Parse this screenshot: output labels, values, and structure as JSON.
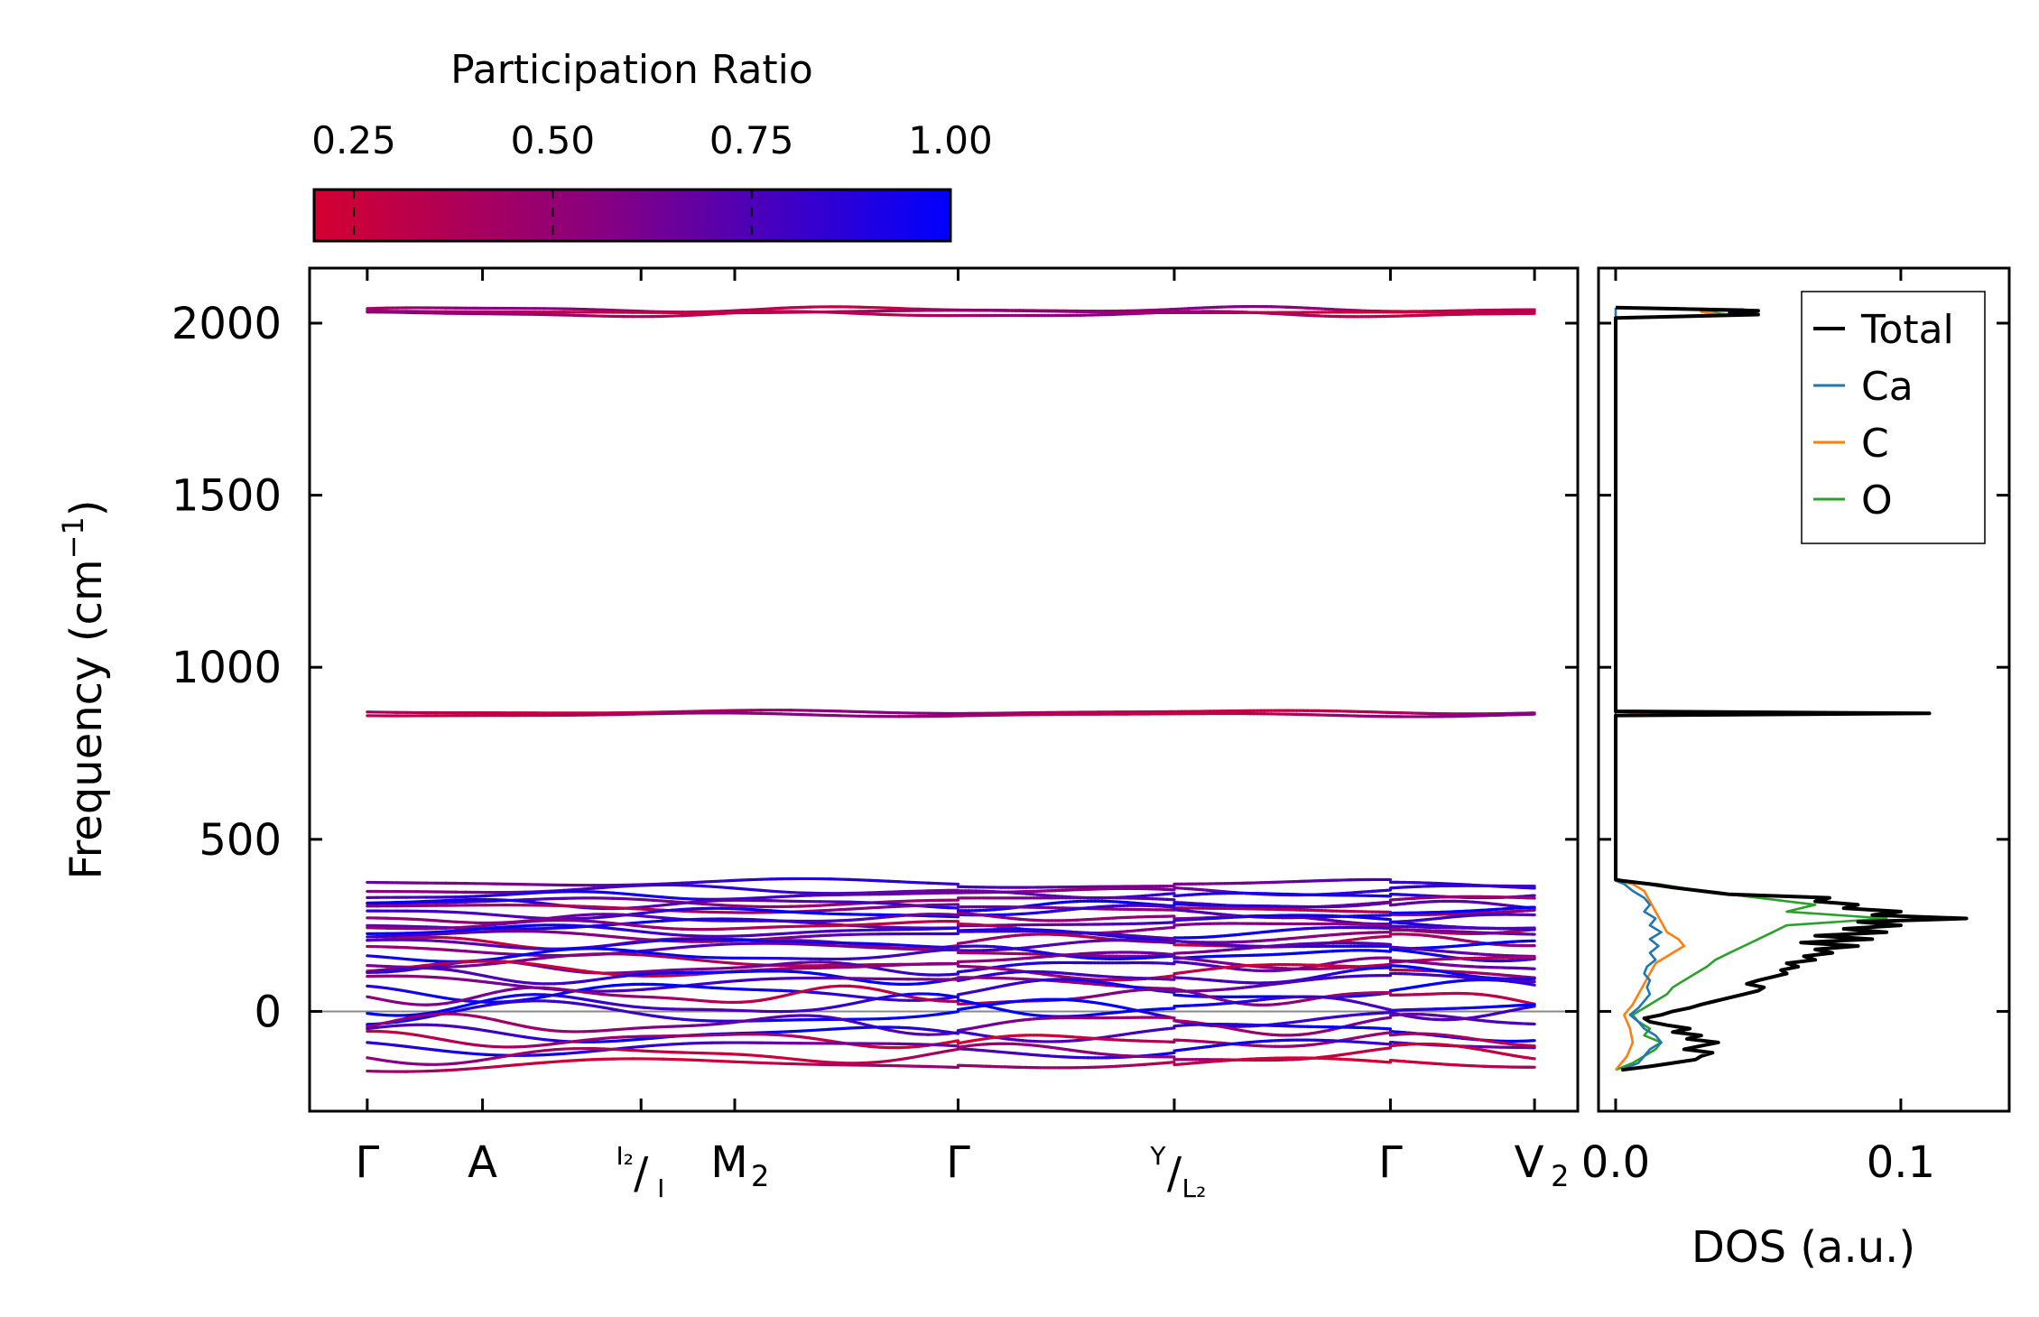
{
  "chart_data": {
    "type": "line",
    "title": "",
    "colorbar": {
      "label": "Participation Ratio",
      "range": [
        0.2,
        1.0
      ],
      "ticks": [
        0.25,
        0.5,
        0.75,
        1.0
      ],
      "tick_labels": [
        "0.25",
        "0.50",
        "0.75",
        "1.00"
      ],
      "color_low": "#d40030",
      "color_mid": "#880080",
      "color_high": "#0000ff"
    },
    "band_panel": {
      "ylabel_main": "Frequency (cm",
      "ylabel_sup": "−1",
      "ylabel_end": ")",
      "ylim": [
        -290,
        2160
      ],
      "yticks": [
        0,
        500,
        1000,
        1500,
        2000
      ],
      "ytick_labels": [
        "0",
        "500",
        "1000",
        "1500",
        "2000"
      ],
      "xlim": [
        -0.4,
        8.4
      ],
      "path_breaks": [
        4.1,
        5.6,
        7.1
      ],
      "kpoints": [
        {
          "x": 0.0,
          "base": "Γ",
          "sub": "",
          "top": "",
          "bottom": ""
        },
        {
          "x": 0.8,
          "base": "A",
          "sub": "",
          "top": "",
          "bottom": ""
        },
        {
          "x": 1.9,
          "base": "",
          "sub": "",
          "top": "I₂",
          "bottom": "I"
        },
        {
          "x": 2.55,
          "base": "M",
          "sub": "2",
          "top": "",
          "bottom": ""
        },
        {
          "x": 4.1,
          "base": "Γ",
          "sub": "",
          "top": "",
          "bottom": ""
        },
        {
          "x": 5.6,
          "base": "",
          "sub": "",
          "top": "Y",
          "bottom": "L₂"
        },
        {
          "x": 7.1,
          "base": "Γ",
          "sub": "",
          "top": "",
          "bottom": ""
        },
        {
          "x": 8.1,
          "base": "V",
          "sub": "2",
          "top": "",
          "bottom": ""
        }
      ],
      "high_bands": [
        {
          "base": 2040,
          "amp": 6,
          "k": 1.1,
          "pr": 0.42
        },
        {
          "base": 2026,
          "amp": 6,
          "k": 1.1,
          "pr": 0.42
        },
        {
          "base": 2033,
          "amp": 3,
          "k": 0.7,
          "pr": 0.4
        },
        {
          "base": 870,
          "amp": 4,
          "k": 0.9,
          "pr": 0.42
        },
        {
          "base": 862,
          "amp": 4,
          "k": 0.9,
          "pr": 0.42
        }
      ],
      "low_bands": [
        {
          "base": 370,
          "amp": 8,
          "k": 0.8,
          "pr": 0.75
        },
        {
          "base": 352,
          "amp": 10,
          "k": 1.0,
          "pr": 0.7
        },
        {
          "base": 338,
          "amp": 9,
          "k": 1.2,
          "pr": 0.8
        },
        {
          "base": 322,
          "amp": 10,
          "k": 0.9,
          "pr": 0.6
        },
        {
          "base": 308,
          "amp": 11,
          "k": 1.3,
          "pr": 0.85
        },
        {
          "base": 298,
          "amp": 10,
          "k": 0.7,
          "pr": 0.5
        },
        {
          "base": 285,
          "amp": 12,
          "k": 1.1,
          "pr": 0.9
        },
        {
          "base": 272,
          "amp": 10,
          "k": 1.4,
          "pr": 0.65
        },
        {
          "base": 258,
          "amp": 12,
          "k": 0.8,
          "pr": 0.8
        },
        {
          "base": 245,
          "amp": 11,
          "k": 1.2,
          "pr": 0.45
        },
        {
          "base": 232,
          "amp": 13,
          "k": 1.0,
          "pr": 0.9
        },
        {
          "base": 220,
          "amp": 12,
          "k": 0.9,
          "pr": 0.7
        },
        {
          "base": 205,
          "amp": 14,
          "k": 1.3,
          "pr": 0.4
        },
        {
          "base": 192,
          "amp": 12,
          "k": 1.1,
          "pr": 0.85
        },
        {
          "base": 178,
          "amp": 14,
          "k": 0.8,
          "pr": 0.6
        },
        {
          "base": 163,
          "amp": 15,
          "k": 1.2,
          "pr": 0.95
        },
        {
          "base": 148,
          "amp": 16,
          "k": 0.9,
          "pr": 0.5
        },
        {
          "base": 132,
          "amp": 15,
          "k": 1.4,
          "pr": 0.75
        },
        {
          "base": 118,
          "amp": 17,
          "k": 1.0,
          "pr": 0.4
        },
        {
          "base": 102,
          "amp": 18,
          "k": 1.3,
          "pr": 0.9
        },
        {
          "base": 85,
          "amp": 18,
          "k": 0.8,
          "pr": 0.65
        },
        {
          "base": 62,
          "amp": 22,
          "k": 1.1,
          "pr": 0.95
        },
        {
          "base": 40,
          "amp": 20,
          "k": 1.5,
          "pr": 0.45
        },
        {
          "base": 15,
          "amp": 24,
          "k": 1.2,
          "pr": 0.9
        },
        {
          "base": -8,
          "amp": 28,
          "k": 0.9,
          "pr": 0.95
        },
        {
          "base": -35,
          "amp": 22,
          "k": 1.3,
          "pr": 0.6
        },
        {
          "base": -60,
          "amp": 20,
          "k": 1.0,
          "pr": 0.9
        },
        {
          "base": -85,
          "amp": 18,
          "k": 1.2,
          "pr": 0.35
        },
        {
          "base": -105,
          "amp": 18,
          "k": 0.8,
          "pr": 0.8
        },
        {
          "base": -125,
          "amp": 20,
          "k": 1.1,
          "pr": 0.4
        },
        {
          "base": -150,
          "amp": 15,
          "k": 0.7,
          "pr": 0.35
        }
      ]
    },
    "dos_panel": {
      "xlabel": "DOS (a.u.)",
      "xlim": [
        -0.006,
        0.138
      ],
      "xticks": [
        0.0,
        0.1
      ],
      "xtick_labels": [
        "0.0",
        "0.1"
      ],
      "series": [
        {
          "name": "Total",
          "color": "#000000",
          "points": [
            [
              -170,
              0.002
            ],
            [
              -160,
              0.012
            ],
            [
              -150,
              0.02
            ],
            [
              -140,
              0.028
            ],
            [
              -130,
              0.03
            ],
            [
              -120,
              0.034
            ],
            [
              -110,
              0.024
            ],
            [
              -100,
              0.03
            ],
            [
              -90,
              0.036
            ],
            [
              -80,
              0.025
            ],
            [
              -70,
              0.03
            ],
            [
              -60,
              0.02
            ],
            [
              -50,
              0.026
            ],
            [
              -40,
              0.018
            ],
            [
              -30,
              0.012
            ],
            [
              -20,
              0.01
            ],
            [
              -10,
              0.016
            ],
            [
              0,
              0.02
            ],
            [
              10,
              0.026
            ],
            [
              20,
              0.03
            ],
            [
              30,
              0.035
            ],
            [
              40,
              0.04
            ],
            [
              50,
              0.045
            ],
            [
              60,
              0.05
            ],
            [
              70,
              0.052
            ],
            [
              80,
              0.046
            ],
            [
              90,
              0.05
            ],
            [
              100,
              0.055
            ],
            [
              110,
              0.06
            ],
            [
              120,
              0.058
            ],
            [
              130,
              0.064
            ],
            [
              140,
              0.06
            ],
            [
              150,
              0.07
            ],
            [
              160,
              0.066
            ],
            [
              170,
              0.076
            ],
            [
              180,
              0.07
            ],
            [
              190,
              0.085
            ],
            [
              200,
              0.065
            ],
            [
              210,
              0.09
            ],
            [
              220,
              0.07
            ],
            [
              230,
              0.095
            ],
            [
              240,
              0.08
            ],
            [
              250,
              0.1
            ],
            [
              260,
              0.085
            ],
            [
              270,
              0.123
            ],
            [
              280,
              0.09
            ],
            [
              290,
              0.1
            ],
            [
              300,
              0.08
            ],
            [
              310,
              0.085
            ],
            [
              320,
              0.07
            ],
            [
              330,
              0.075
            ],
            [
              340,
              0.04
            ],
            [
              350,
              0.03
            ],
            [
              360,
              0.02
            ],
            [
              370,
              0.012
            ],
            [
              380,
              0.002
            ],
            [
              383,
              0.0
            ],
            [
              860,
              0.0
            ],
            [
              866,
              0.11
            ],
            [
              872,
              0.0
            ],
            [
              2015,
              0.0
            ],
            [
              2025,
              0.05
            ],
            [
              2030,
              0.04
            ],
            [
              2036,
              0.05
            ],
            [
              2042,
              0.02
            ],
            [
              2045,
              0.0
            ]
          ]
        },
        {
          "name": "Ca",
          "color": "#1f77b4",
          "points": [
            [
              -170,
              0.002
            ],
            [
              -150,
              0.008
            ],
            [
              -130,
              0.01
            ],
            [
              -110,
              0.012
            ],
            [
              -90,
              0.016
            ],
            [
              -70,
              0.014
            ],
            [
              -50,
              0.01
            ],
            [
              -30,
              0.008
            ],
            [
              -10,
              0.005
            ],
            [
              10,
              0.008
            ],
            [
              30,
              0.01
            ],
            [
              50,
              0.012
            ],
            [
              70,
              0.011
            ],
            [
              90,
              0.012
            ],
            [
              110,
              0.01
            ],
            [
              130,
              0.011
            ],
            [
              150,
              0.014
            ],
            [
              170,
              0.012
            ],
            [
              190,
              0.015
            ],
            [
              210,
              0.012
            ],
            [
              230,
              0.016
            ],
            [
              250,
              0.012
            ],
            [
              270,
              0.014
            ],
            [
              290,
              0.01
            ],
            [
              310,
              0.012
            ],
            [
              330,
              0.01
            ],
            [
              350,
              0.006
            ],
            [
              370,
              0.003
            ],
            [
              380,
              0.0
            ],
            [
              2045,
              0.0
            ]
          ]
        },
        {
          "name": "C",
          "color": "#ff7f0e",
          "points": [
            [
              -170,
              0.0
            ],
            [
              -130,
              0.004
            ],
            [
              -90,
              0.006
            ],
            [
              -50,
              0.005
            ],
            [
              -10,
              0.003
            ],
            [
              20,
              0.006
            ],
            [
              50,
              0.008
            ],
            [
              80,
              0.01
            ],
            [
              110,
              0.012
            ],
            [
              140,
              0.014
            ],
            [
              170,
              0.02
            ],
            [
              190,
              0.024
            ],
            [
              210,
              0.022
            ],
            [
              230,
              0.018
            ],
            [
              260,
              0.016
            ],
            [
              290,
              0.014
            ],
            [
              320,
              0.012
            ],
            [
              350,
              0.01
            ],
            [
              370,
              0.006
            ],
            [
              380,
              0.0
            ],
            [
              860,
              0.0
            ],
            [
              866,
              0.01
            ],
            [
              872,
              0.0
            ],
            [
              2015,
              0.0
            ],
            [
              2025,
              0.036
            ],
            [
              2033,
              0.03
            ],
            [
              2040,
              0.04
            ],
            [
              2045,
              0.0
            ]
          ]
        },
        {
          "name": "O",
          "color": "#2ca02c",
          "points": [
            [
              -170,
              0.0
            ],
            [
              -150,
              0.006
            ],
            [
              -130,
              0.01
            ],
            [
              -110,
              0.014
            ],
            [
              -90,
              0.016
            ],
            [
              -70,
              0.01
            ],
            [
              -50,
              0.012
            ],
            [
              -30,
              0.008
            ],
            [
              -10,
              0.006
            ],
            [
              10,
              0.01
            ],
            [
              30,
              0.014
            ],
            [
              50,
              0.018
            ],
            [
              70,
              0.02
            ],
            [
              90,
              0.024
            ],
            [
              110,
              0.028
            ],
            [
              130,
              0.032
            ],
            [
              150,
              0.035
            ],
            [
              170,
              0.04
            ],
            [
              190,
              0.045
            ],
            [
              210,
              0.05
            ],
            [
              230,
              0.055
            ],
            [
              250,
              0.06
            ],
            [
              270,
              0.095
            ],
            [
              290,
              0.06
            ],
            [
              310,
              0.07
            ],
            [
              330,
              0.05
            ],
            [
              350,
              0.03
            ],
            [
              370,
              0.015
            ],
            [
              380,
              0.0
            ],
            [
              860,
              0.0
            ],
            [
              866,
              0.108
            ],
            [
              872,
              0.0
            ],
            [
              2015,
              0.0
            ],
            [
              2025,
              0.04
            ],
            [
              2033,
              0.03
            ],
            [
              2040,
              0.045
            ],
            [
              2045,
              0.0
            ]
          ]
        }
      ],
      "legend": {
        "placement": "top-right"
      }
    }
  }
}
